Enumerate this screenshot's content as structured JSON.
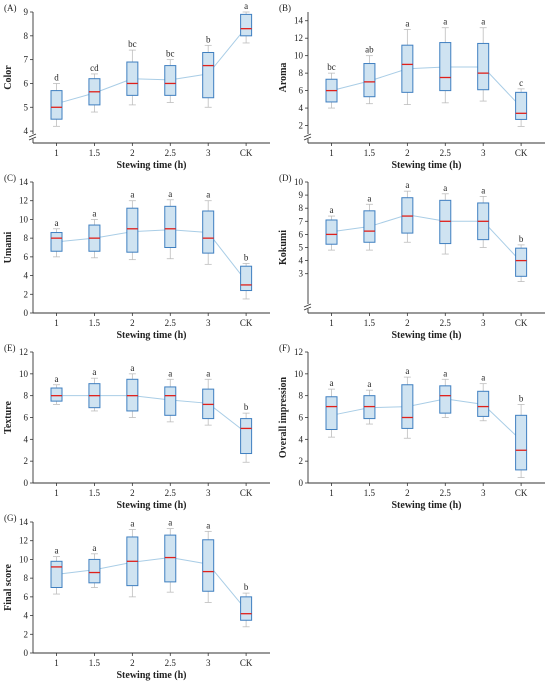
{
  "colors": {
    "box_fill": "#cfe3f1",
    "box_stroke": "#3f7fc0",
    "median": "#e0201b",
    "mean_line": "#a9cde6",
    "whisker": "#bdbdbd",
    "axis": "#333333"
  },
  "chart_data": [
    {
      "type": "box",
      "panel_label": "(A)",
      "ylabel": "Color",
      "xlabel": "Stewing time (h)",
      "categories": [
        "1",
        "1.5",
        "2",
        "2.5",
        "3",
        "CK"
      ],
      "ylim": [
        3.5,
        9
      ],
      "yticks": [
        4,
        5,
        6,
        7,
        8,
        9
      ],
      "axis_break": true,
      "boxes": [
        {
          "q1": 4.5,
          "median": 5.0,
          "q3": 5.7,
          "min": 4.2,
          "max": 6.0,
          "mean": 5.15
        },
        {
          "q1": 5.1,
          "median": 5.65,
          "q3": 6.2,
          "min": 4.8,
          "max": 6.4,
          "mean": 5.6
        },
        {
          "q1": 5.5,
          "median": 6.0,
          "q3": 6.9,
          "min": 5.1,
          "max": 7.4,
          "mean": 6.2
        },
        {
          "q1": 5.5,
          "median": 6.0,
          "q3": 6.75,
          "min": 5.2,
          "max": 7.0,
          "mean": 6.15
        },
        {
          "q1": 5.4,
          "median": 6.75,
          "q3": 7.3,
          "min": 5.0,
          "max": 7.6,
          "mean": 6.4
        },
        {
          "q1": 8.0,
          "median": 8.3,
          "q3": 8.9,
          "min": 7.7,
          "max": 9.0,
          "mean": 8.35
        }
      ],
      "letters": [
        "d",
        "cd",
        "bc",
        "bc",
        "b",
        "a"
      ]
    },
    {
      "type": "box",
      "panel_label": "(B)",
      "ylabel": "Aroma",
      "xlabel": "Stewing time (h)",
      "categories": [
        "1",
        "1.5",
        "2",
        "2.5",
        "3",
        "CK"
      ],
      "ylim": [
        0,
        15
      ],
      "yticks": [
        2,
        4,
        6,
        8,
        10,
        12,
        14
      ],
      "axis_break": true,
      "boxes": [
        {
          "q1": 4.7,
          "median": 6.0,
          "q3": 7.3,
          "min": 4.0,
          "max": 8.0,
          "mean": 6.0
        },
        {
          "q1": 5.3,
          "median": 7.0,
          "q3": 9.1,
          "min": 4.5,
          "max": 10.0,
          "mean": 7.1
        },
        {
          "q1": 5.8,
          "median": 9.0,
          "q3": 11.2,
          "min": 4.4,
          "max": 13.0,
          "mean": 8.5
        },
        {
          "q1": 6.0,
          "median": 7.5,
          "q3": 11.5,
          "min": 4.6,
          "max": 13.2,
          "mean": 8.7
        },
        {
          "q1": 6.1,
          "median": 8.0,
          "q3": 11.4,
          "min": 4.8,
          "max": 13.2,
          "mean": 8.7
        },
        {
          "q1": 2.7,
          "median": 3.4,
          "q3": 5.8,
          "min": 1.9,
          "max": 6.2,
          "mean": 4.1
        }
      ],
      "letters": [
        "bc",
        "ab",
        "a",
        "a",
        "a",
        "c"
      ]
    },
    {
      "type": "box",
      "panel_label": "(C)",
      "ylabel": "Umami",
      "xlabel": "Stewing time (h)",
      "categories": [
        "1",
        "1.5",
        "2",
        "2.5",
        "3",
        "CK"
      ],
      "ylim": [
        0,
        14
      ],
      "yticks": [
        0,
        2,
        4,
        6,
        8,
        10,
        12,
        14
      ],
      "axis_break": false,
      "boxes": [
        {
          "q1": 6.6,
          "median": 8.0,
          "q3": 8.6,
          "min": 6.0,
          "max": 9.0,
          "mean": 7.6
        },
        {
          "q1": 6.6,
          "median": 8.0,
          "q3": 9.4,
          "min": 5.9,
          "max": 10.0,
          "mean": 8.0
        },
        {
          "q1": 6.5,
          "median": 9.0,
          "q3": 11.2,
          "min": 5.7,
          "max": 12.0,
          "mean": 8.7
        },
        {
          "q1": 7.0,
          "median": 9.0,
          "q3": 11.4,
          "min": 5.8,
          "max": 12.1,
          "mean": 8.9
        },
        {
          "q1": 6.4,
          "median": 8.0,
          "q3": 10.9,
          "min": 5.2,
          "max": 12.0,
          "mean": 8.6
        },
        {
          "q1": 2.4,
          "median": 3.0,
          "q3": 5.0,
          "min": 1.5,
          "max": 5.3,
          "mean": 3.4
        }
      ],
      "letters": [
        "a",
        "a",
        "a",
        "a",
        "a",
        "b"
      ]
    },
    {
      "type": "box",
      "panel_label": "(D)",
      "ylabel": "Kokumi",
      "xlabel": "Stewing time (h)",
      "categories": [
        "1",
        "1.5",
        "2",
        "2.5",
        "3",
        "CK"
      ],
      "ylim": [
        0,
        10
      ],
      "yticks": [
        3,
        4,
        5,
        6,
        7,
        8,
        9,
        10
      ],
      "axis_break": true,
      "boxes": [
        {
          "q1": 5.25,
          "median": 6.0,
          "q3": 7.1,
          "min": 4.8,
          "max": 7.4,
          "mean": 6.2
        },
        {
          "q1": 5.4,
          "median": 6.25,
          "q3": 7.8,
          "min": 4.8,
          "max": 8.3,
          "mean": 6.6
        },
        {
          "q1": 6.1,
          "median": 7.4,
          "q3": 8.8,
          "min": 5.4,
          "max": 9.3,
          "mean": 7.5
        },
        {
          "q1": 5.3,
          "median": 7.0,
          "q3": 8.6,
          "min": 4.5,
          "max": 9.1,
          "mean": 7.0
        },
        {
          "q1": 5.6,
          "median": 7.0,
          "q3": 8.4,
          "min": 5.0,
          "max": 8.9,
          "mean": 7.0
        },
        {
          "q1": 2.8,
          "median": 4.0,
          "q3": 4.95,
          "min": 2.4,
          "max": 5.2,
          "mean": 3.9
        }
      ],
      "letters": [
        "a",
        "a",
        "a",
        "a",
        "a",
        "b"
      ]
    },
    {
      "type": "box",
      "panel_label": "(E)",
      "ylabel": "Texture",
      "xlabel": "Stewing time (h)",
      "categories": [
        "1",
        "1.5",
        "2",
        "2.5",
        "3",
        "CK"
      ],
      "ylim": [
        0,
        12
      ],
      "yticks": [
        0,
        2,
        4,
        6,
        8,
        10,
        12
      ],
      "axis_break": false,
      "boxes": [
        {
          "q1": 7.5,
          "median": 8.0,
          "q3": 8.7,
          "min": 7.2,
          "max": 9.0,
          "mean": 8.0
        },
        {
          "q1": 6.9,
          "median": 8.0,
          "q3": 9.1,
          "min": 6.6,
          "max": 9.6,
          "mean": 8.0
        },
        {
          "q1": 6.6,
          "median": 8.0,
          "q3": 9.5,
          "min": 6.0,
          "max": 10.0,
          "mean": 8.0
        },
        {
          "q1": 6.2,
          "median": 8.0,
          "q3": 8.8,
          "min": 5.6,
          "max": 9.5,
          "mean": 7.6
        },
        {
          "q1": 5.9,
          "median": 7.2,
          "q3": 8.6,
          "min": 5.3,
          "max": 9.5,
          "mean": 7.3
        },
        {
          "q1": 2.7,
          "median": 5.0,
          "q3": 5.9,
          "min": 1.9,
          "max": 6.4,
          "mean": 4.6
        }
      ],
      "letters": [
        "a",
        "a",
        "a",
        "a",
        "a",
        "b"
      ]
    },
    {
      "type": "box",
      "panel_label": "(F)",
      "ylabel": "Overall impression",
      "xlabel": "Stewing time (h)",
      "categories": [
        "1",
        "1.5",
        "2",
        "2.5",
        "3",
        "CK"
      ],
      "ylim": [
        0,
        12
      ],
      "yticks": [
        0,
        2,
        4,
        6,
        8,
        10,
        12
      ],
      "axis_break": false,
      "boxes": [
        {
          "q1": 4.9,
          "median": 7.0,
          "q3": 7.9,
          "min": 4.2,
          "max": 8.6,
          "mean": 6.2
        },
        {
          "q1": 5.9,
          "median": 7.0,
          "q3": 8.0,
          "min": 5.4,
          "max": 8.5,
          "mean": 6.9
        },
        {
          "q1": 5.0,
          "median": 6.0,
          "q3": 9.0,
          "min": 4.1,
          "max": 9.7,
          "mean": 7.0
        },
        {
          "q1": 6.4,
          "median": 8.0,
          "q3": 8.9,
          "min": 6.0,
          "max": 9.5,
          "mean": 7.7
        },
        {
          "q1": 6.1,
          "median": 7.0,
          "q3": 8.4,
          "min": 5.7,
          "max": 9.1,
          "mean": 7.2
        },
        {
          "q1": 1.2,
          "median": 3.0,
          "q3": 6.2,
          "min": 0.5,
          "max": 7.2,
          "mean": 3.9
        }
      ],
      "letters": [
        "a",
        "a",
        "a",
        "a",
        "a",
        "b"
      ]
    },
    {
      "type": "box",
      "panel_label": "(G)",
      "ylabel": "Final score",
      "xlabel": "Stewing time (h)",
      "categories": [
        "1",
        "1.5",
        "2",
        "2.5",
        "3",
        "CK"
      ],
      "ylim": [
        0,
        14
      ],
      "yticks": [
        0,
        2,
        4,
        6,
        8,
        10,
        12,
        14
      ],
      "axis_break": false,
      "boxes": [
        {
          "q1": 7.0,
          "median": 9.2,
          "q3": 9.8,
          "min": 6.3,
          "max": 10.3,
          "mean": 8.4
        },
        {
          "q1": 7.5,
          "median": 8.6,
          "q3": 10.0,
          "min": 7.0,
          "max": 10.6,
          "mean": 8.9
        },
        {
          "q1": 7.2,
          "median": 9.8,
          "q3": 12.4,
          "min": 6.0,
          "max": 13.2,
          "mean": 9.7
        },
        {
          "q1": 7.6,
          "median": 10.2,
          "q3": 12.6,
          "min": 6.5,
          "max": 13.3,
          "mean": 10.2
        },
        {
          "q1": 6.6,
          "median": 8.7,
          "q3": 12.1,
          "min": 5.4,
          "max": 13.0,
          "mean": 9.5
        },
        {
          "q1": 3.5,
          "median": 4.2,
          "q3": 6.0,
          "min": 2.8,
          "max": 6.4,
          "mean": 4.6
        }
      ],
      "letters": [
        "a",
        "a",
        "a",
        "a",
        "a",
        "b"
      ]
    }
  ]
}
